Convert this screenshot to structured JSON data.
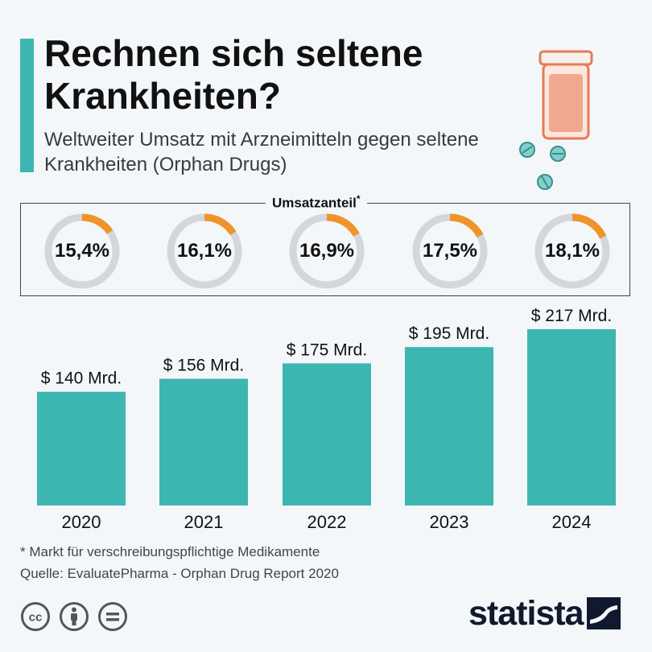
{
  "header": {
    "title": "Rechnen sich seltene Krankheiten?",
    "subtitle": "Weltweiter Umsatz mit Arzneimitteln gegen seltene Krankheiten (Orphan Drugs)"
  },
  "share_section": {
    "title": "Umsatzanteil",
    "title_marker": "*"
  },
  "chart_data": [
    {
      "type": "pie",
      "title": "Umsatzanteil*",
      "categories": [
        "2020",
        "2021",
        "2022",
        "2023",
        "2024"
      ],
      "values": [
        15.4,
        16.1,
        16.9,
        17.5,
        18.1
      ],
      "value_labels": [
        "15,4%",
        "16,1%",
        "16,9%",
        "17,5%",
        "18,1%"
      ],
      "unit": "%"
    },
    {
      "type": "bar",
      "title": "Weltweiter Umsatz mit Arzneimitteln gegen seltene Krankheiten (Orphan Drugs)",
      "categories": [
        "2020",
        "2021",
        "2022",
        "2023",
        "2024"
      ],
      "values": [
        140,
        156,
        175,
        195,
        217
      ],
      "value_labels": [
        "$ 140 Mrd.",
        "$ 156 Mrd.",
        "$ 175 Mrd.",
        "$ 195 Mrd.",
        "$ 217 Mrd."
      ],
      "unit": "Mrd. $",
      "ylim": [
        0,
        217
      ]
    }
  ],
  "colors": {
    "bar": "#3db6b2",
    "donut_track": "#d4d7da",
    "donut_share": "#f0932b",
    "accent": "#3db6b2"
  },
  "footer": {
    "footnote": "* Markt für verschreibungspflichtige Medikamente",
    "source": "Quelle: EvaluatePharma - Orphan Drug Report 2020",
    "logo_text": "statista",
    "license_icons": [
      "cc-icon",
      "by-icon",
      "nd-icon"
    ]
  }
}
